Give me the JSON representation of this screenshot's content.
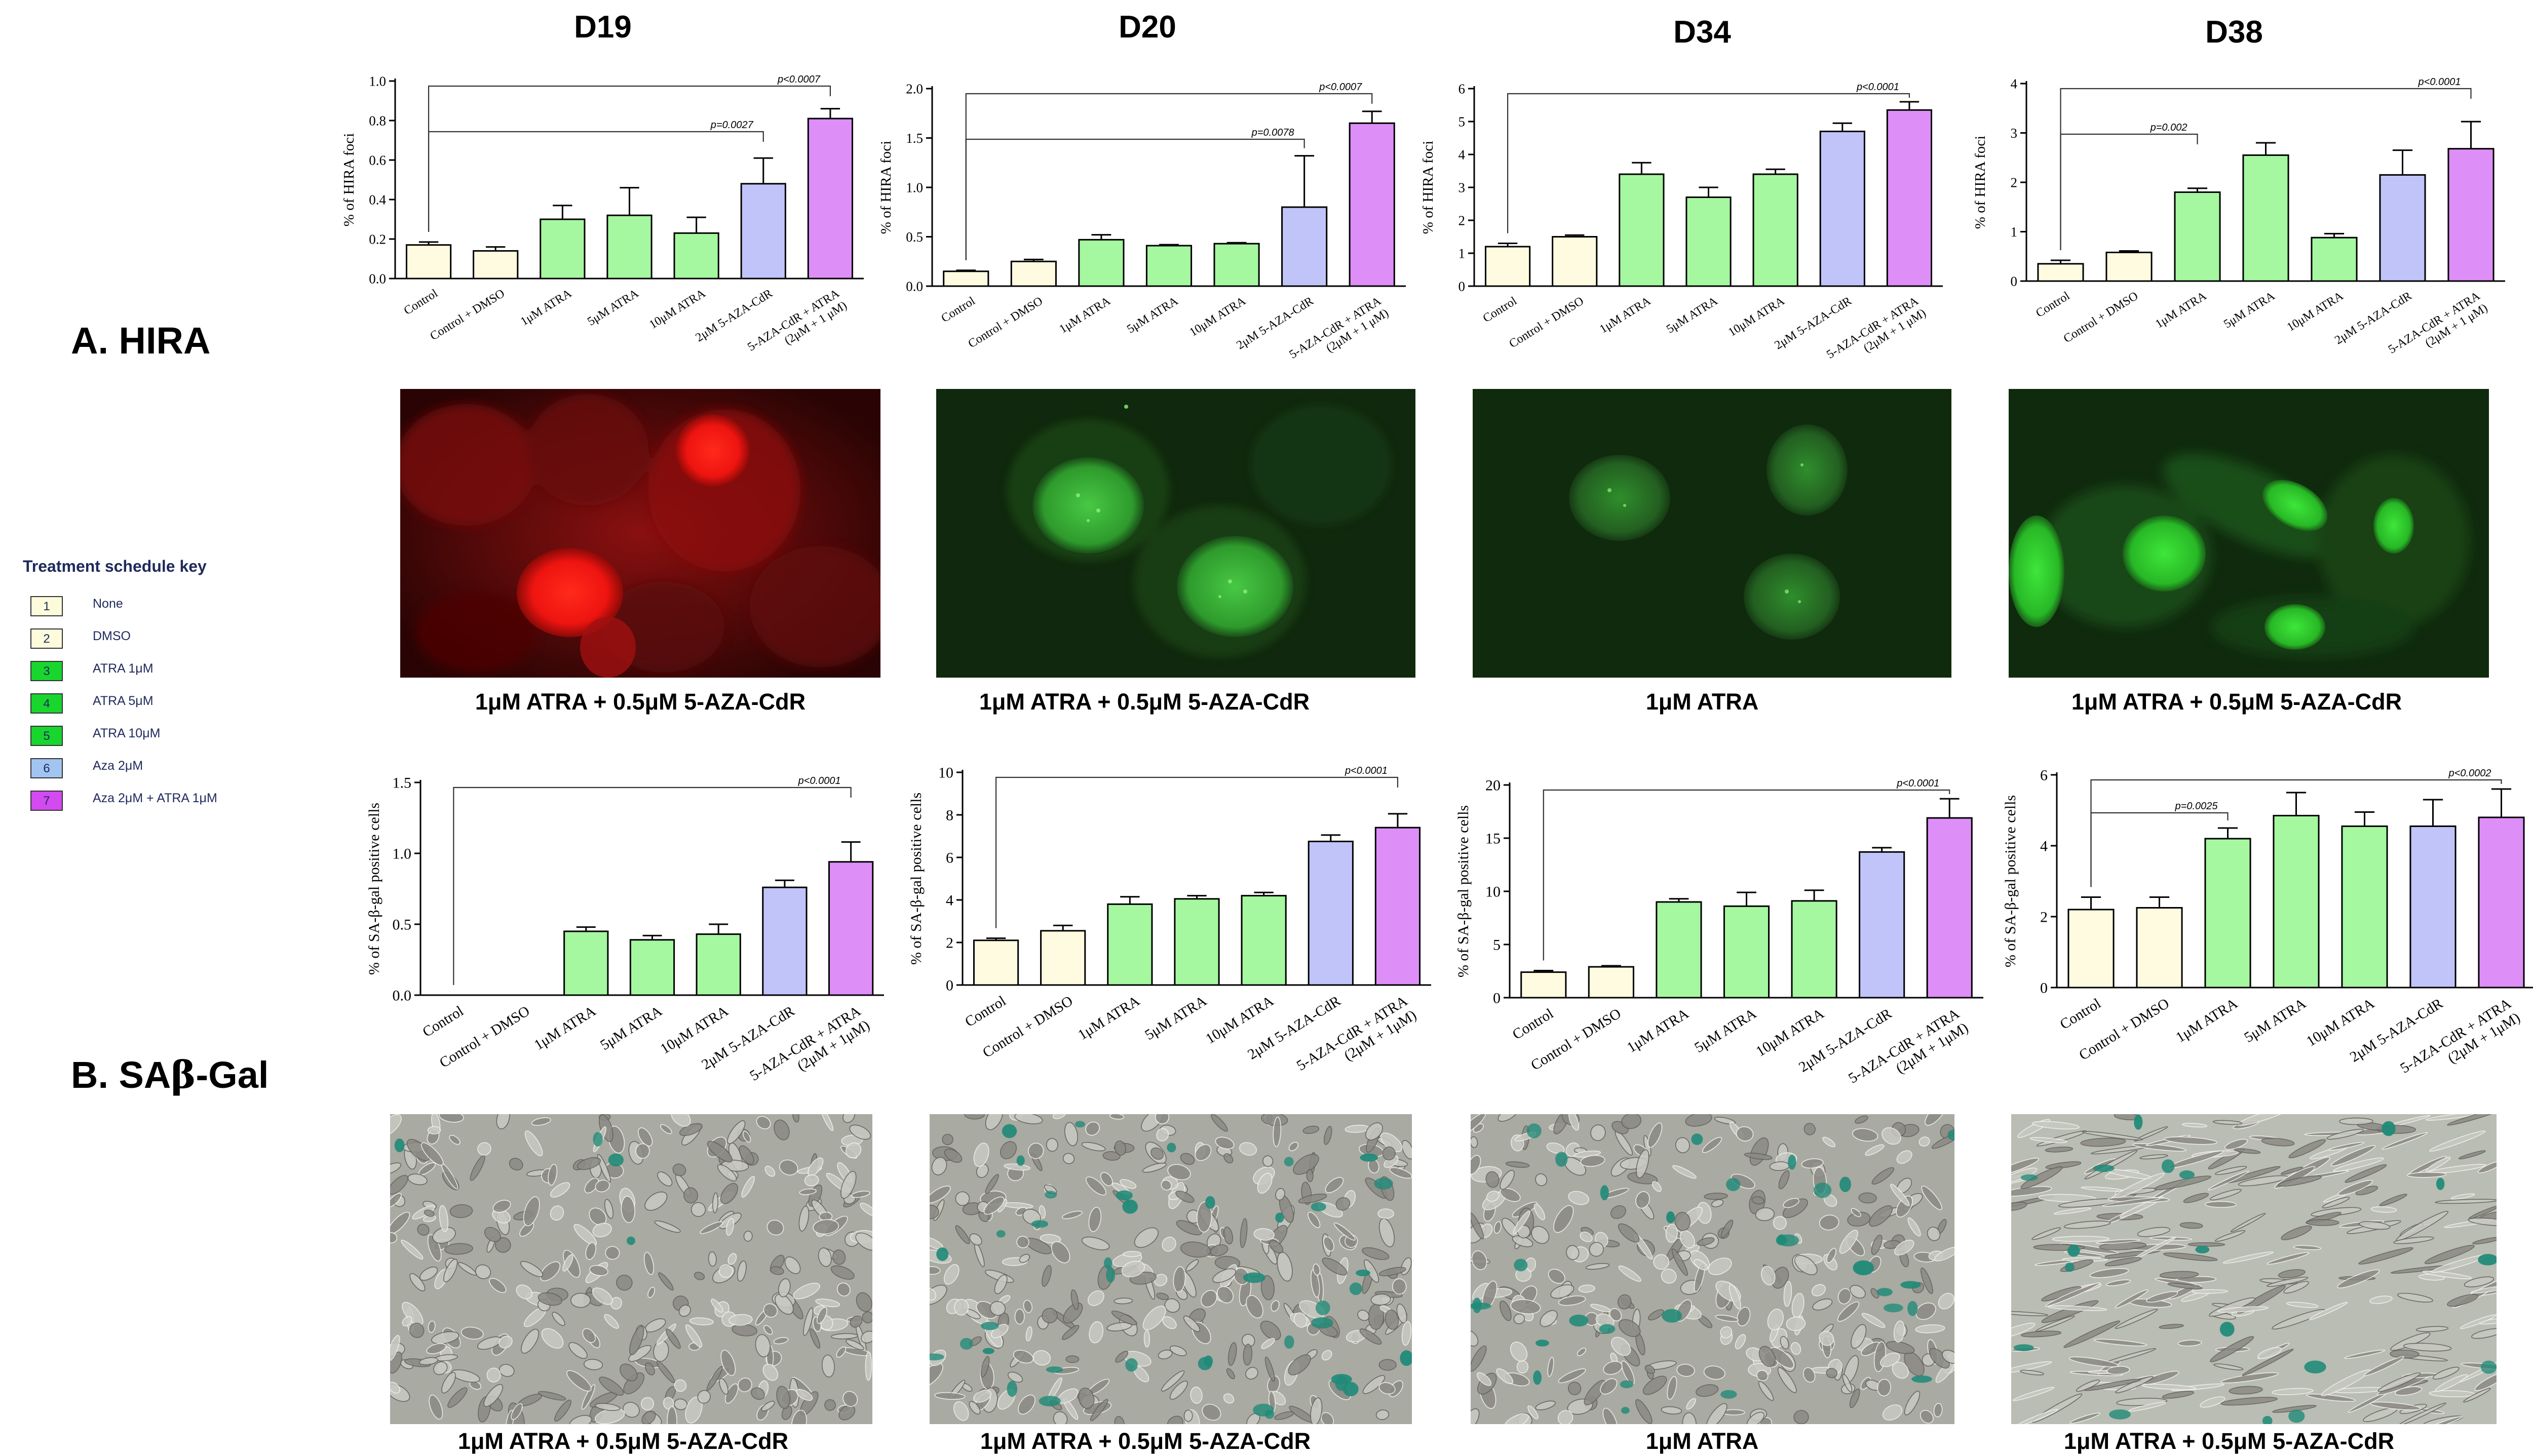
{
  "column_titles": [
    "D19",
    "D20",
    "D34",
    "D38"
  ],
  "panel_labels": {
    "a": "A. HIRA",
    "b_prefix": "B. SA",
    "b_greek": "β",
    "b_suffix": "-Gal"
  },
  "legend": {
    "title": "Treatment schedule key",
    "items": [
      {
        "num": "1",
        "label": "None",
        "color": "#fdfbdc"
      },
      {
        "num": "2",
        "label": "DMSO",
        "color": "#fdfbdc"
      },
      {
        "num": "3",
        "label": "ATRA 1μM",
        "color": "#18d62d"
      },
      {
        "num": "4",
        "label": "ATRA 5μM",
        "color": "#18d62d"
      },
      {
        "num": "5",
        "label": "ATRA 10μM",
        "color": "#18d62d"
      },
      {
        "num": "6",
        "label": "Aza 2μM",
        "color": "#a2c4f0"
      },
      {
        "num": "7",
        "label": "Aza 2μM + ATRA 1μM",
        "color": "#d24af0"
      }
    ]
  },
  "colors": {
    "control": "#fffbe0",
    "atra": "#a5f7a0",
    "aza": "#c0c4f8",
    "combo": "#dd8ef7",
    "hira_red_bg": "#380606",
    "hira_red_cell": "#ff1a12",
    "hira_green_bg": "#0f2a0c",
    "hira_green_cell": "#3bd43a",
    "sabgal_bg": "#a9aaa2",
    "sabgal_stain": "#1f8a78"
  },
  "hira_captions": [
    "1μM ATRA + 0.5μM 5-AZA-CdR",
    "1μM ATRA + 0.5μM 5-AZA-CdR",
    "1μM ATRA",
    "1μM ATRA + 0.5μM 5-AZA-CdR"
  ],
  "sabgal_captions": [
    "1μM ATRA + 0.5μM 5-AZA-CdR",
    "1μM ATRA + 0.5μM 5-AZA-CdR",
    "1μM ATRA",
    "1μM ATRA + 0.5μM 5-AZA-CdR"
  ],
  "chart_data": [
    {
      "id": "hira-d19",
      "type": "bar",
      "title": "D19",
      "ylabel": "% of HIRA foci",
      "categories": [
        "Control",
        "Control + DMSO",
        "1μM ATRA",
        "5μM ATRA",
        "10μM ATRA",
        "2μM 5-AZA-CdR",
        "5-AZA-CdR + ATRA\n(2μM + 1 μM)"
      ],
      "values": [
        0.17,
        0.14,
        0.3,
        0.32,
        0.23,
        0.48,
        0.81
      ],
      "errors": [
        0.015,
        0.02,
        0.07,
        0.14,
        0.08,
        0.13,
        0.05
      ],
      "ylim": [
        0,
        1.0
      ],
      "yticks": [
        "0.0",
        "0.2",
        "0.4",
        "0.6",
        "0.8",
        "1.0"
      ],
      "pvalues": [
        {
          "from": 0,
          "to": 6,
          "label": "p<0.0007"
        },
        {
          "from": 0,
          "to": 5,
          "label": "p=0.0027"
        }
      ]
    },
    {
      "id": "hira-d20",
      "type": "bar",
      "title": "D20",
      "ylabel": "% of HIRA foci",
      "categories": [
        "Control",
        "Control + DMSO",
        "1μM ATRA",
        "5μM ATRA",
        "10μM ATRA",
        "2μM 5-AZA-CdR",
        "5-AZA-CdR + ATRA\n(2μM + 1 μM)"
      ],
      "values": [
        0.15,
        0.25,
        0.47,
        0.41,
        0.43,
        0.8,
        1.65
      ],
      "errors": [
        0.01,
        0.02,
        0.05,
        0.01,
        0.01,
        0.52,
        0.12
      ],
      "ylim": [
        0,
        2.0
      ],
      "yticks": [
        "0.0",
        "0.5",
        "1.0",
        "1.5",
        "2.0"
      ],
      "pvalues": [
        {
          "from": 0,
          "to": 6,
          "label": "p<0.0007"
        },
        {
          "from": 0,
          "to": 5,
          "label": "p=0.0078"
        }
      ]
    },
    {
      "id": "hira-d34",
      "type": "bar",
      "title": "D34",
      "ylabel": "% of HIRA foci",
      "categories": [
        "Control",
        "Control + DMSO",
        "1μM ATRA",
        "5μM ATRA",
        "10μM ATRA",
        "2μM 5-AZA-CdR",
        "5-AZA-CdR + ATRA\n(2μM + 1 μM)"
      ],
      "values": [
        1.2,
        1.5,
        3.4,
        2.7,
        3.4,
        4.7,
        5.35
      ],
      "errors": [
        0.1,
        0.05,
        0.35,
        0.3,
        0.15,
        0.25,
        0.25
      ],
      "ylim": [
        0,
        6
      ],
      "yticks": [
        "0",
        "1",
        "2",
        "3",
        "4",
        "5",
        "6"
      ],
      "pvalues": [
        {
          "from": 0,
          "to": 6,
          "label": "p<0.0001"
        }
      ]
    },
    {
      "id": "hira-d38",
      "type": "bar",
      "title": "D38",
      "ylabel": "% of HIRA foci",
      "categories": [
        "Control",
        "Control + DMSO",
        "1μM ATRA",
        "5μM ATRA",
        "10μM ATRA",
        "2μM 5-AZA-CdR",
        "5-AZA-CdR + ATRA\n(2μM + 1 μM)"
      ],
      "values": [
        0.35,
        0.58,
        1.8,
        2.55,
        0.88,
        2.15,
        2.68
      ],
      "errors": [
        0.07,
        0.03,
        0.08,
        0.25,
        0.08,
        0.5,
        0.55
      ],
      "ylim": [
        0,
        4
      ],
      "yticks": [
        "0",
        "1",
        "2",
        "3",
        "4"
      ],
      "pvalues": [
        {
          "from": 0,
          "to": 6,
          "label": "p<0.0001"
        },
        {
          "from": 0,
          "to": 2,
          "label": "p=0.002"
        }
      ]
    },
    {
      "id": "sab-d19",
      "type": "bar",
      "title": "D19",
      "ylabel": "% of SA-β-gal positive cells",
      "categories": [
        "Control",
        "Control + DMSO",
        "1μM ATRA",
        "5μM ATRA",
        "10μM ATRA",
        "2μM 5-AZA-CdR",
        "5-AZA-CdR + ATRA\n(2μM + 1μM)"
      ],
      "values": [
        0,
        0,
        0.45,
        0.39,
        0.43,
        0.76,
        0.94
      ],
      "errors": [
        0,
        0,
        0.03,
        0.03,
        0.07,
        0.05,
        0.14
      ],
      "ylim": [
        0,
        1.5
      ],
      "yticks": [
        "0.0",
        "0.5",
        "1.0",
        "1.5"
      ],
      "pvalues": [
        {
          "from": 0,
          "to": 6,
          "label": "p<0.0001"
        }
      ]
    },
    {
      "id": "sab-d20",
      "type": "bar",
      "title": "D20",
      "ylabel": "% of SA-β-gal positive cells",
      "categories": [
        "Control",
        "Control + DMSO",
        "1μM ATRA",
        "5μM ATRA",
        "10μM ATRA",
        "2μM 5-AZA-CdR",
        "5-AZA-CdR + ATRA\n(2μM + 1μM)"
      ],
      "values": [
        2.1,
        2.55,
        3.8,
        4.05,
        4.2,
        6.75,
        7.4
      ],
      "errors": [
        0.1,
        0.25,
        0.35,
        0.15,
        0.15,
        0.3,
        0.65
      ],
      "ylim": [
        0,
        10
      ],
      "yticks": [
        "0",
        "2",
        "4",
        "6",
        "8",
        "10"
      ],
      "pvalues": [
        {
          "from": 0,
          "to": 6,
          "label": "p<0.0001"
        }
      ]
    },
    {
      "id": "sab-d34",
      "type": "bar",
      "title": "D34",
      "ylabel": "% of SA-β-gal positive cells",
      "categories": [
        "Control",
        "Control + DMSO",
        "1μM ATRA",
        "5μM ATRA",
        "10μM ATRA",
        "2μM 5-AZA-CdR",
        "5-AZA-CdR + ATRA\n(2μM + 1μM)"
      ],
      "values": [
        2.4,
        2.9,
        9.0,
        8.6,
        9.1,
        13.7,
        16.9
      ],
      "errors": [
        0.15,
        0.1,
        0.3,
        1.3,
        1.0,
        0.4,
        1.8
      ],
      "ylim": [
        0,
        20
      ],
      "yticks": [
        "0",
        "5",
        "10",
        "15",
        "20"
      ],
      "pvalues": [
        {
          "from": 0,
          "to": 6,
          "label": "p<0.0001"
        }
      ]
    },
    {
      "id": "sab-d38",
      "type": "bar",
      "title": "D38",
      "ylabel": "% of SA-β-gal positive cells",
      "categories": [
        "Control",
        "Control + DMSO",
        "1μM ATRA",
        "5μM ATRA",
        "10μM ATRA",
        "2μM 5-AZA-CdR",
        "5-AZA-CdR + ATRA\n(2μM + 1μM)"
      ],
      "values": [
        2.2,
        2.25,
        4.2,
        4.85,
        4.55,
        4.55,
        4.8
      ],
      "errors": [
        0.35,
        0.3,
        0.3,
        0.65,
        0.4,
        0.75,
        0.8
      ],
      "ylim": [
        0,
        6
      ],
      "yticks": [
        "0",
        "2",
        "4",
        "6"
      ],
      "pvalues": [
        {
          "from": 0,
          "to": 6,
          "label": "p<0.0002"
        },
        {
          "from": 0,
          "to": 2,
          "label": "p=0.0025"
        }
      ]
    }
  ]
}
